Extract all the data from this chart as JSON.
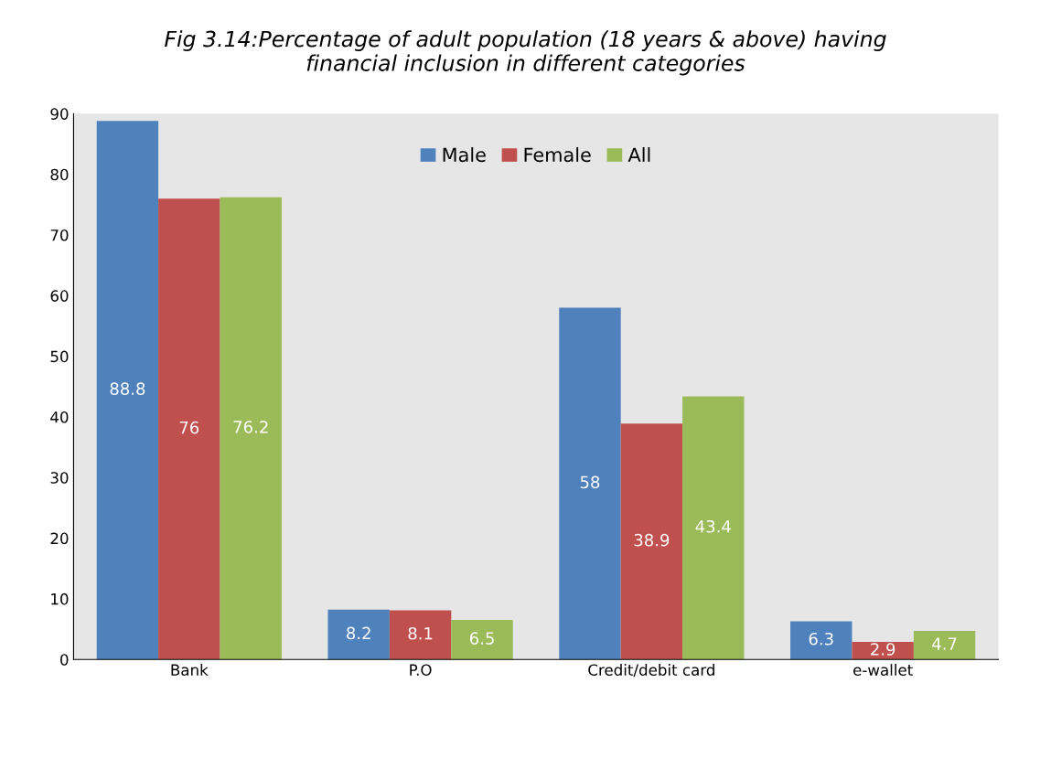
{
  "chart_data": {
    "type": "bar",
    "title": "Fig 3.14:Percentage of adult population (18 years & above) having\nfinancial inclusion in different categories",
    "categories": [
      "Bank",
      "P.O",
      "Credit/debit card",
      "e-wallet"
    ],
    "series": [
      {
        "name": "Male",
        "color": "#4f81bd",
        "values": [
          88.8,
          8.2,
          58,
          6.3
        ]
      },
      {
        "name": "Female",
        "color": "#c0504d",
        "values": [
          76,
          8.1,
          38.9,
          2.9
        ]
      },
      {
        "name": "All",
        "color": "#9bbb59",
        "values": [
          76.2,
          6.5,
          43.4,
          4.7
        ]
      }
    ],
    "ylim": [
      0,
      90
    ],
    "yticks": [
      0,
      10,
      20,
      30,
      40,
      50,
      60,
      70,
      80,
      90
    ],
    "data_labels": true,
    "legend": "top",
    "grid": false
  }
}
